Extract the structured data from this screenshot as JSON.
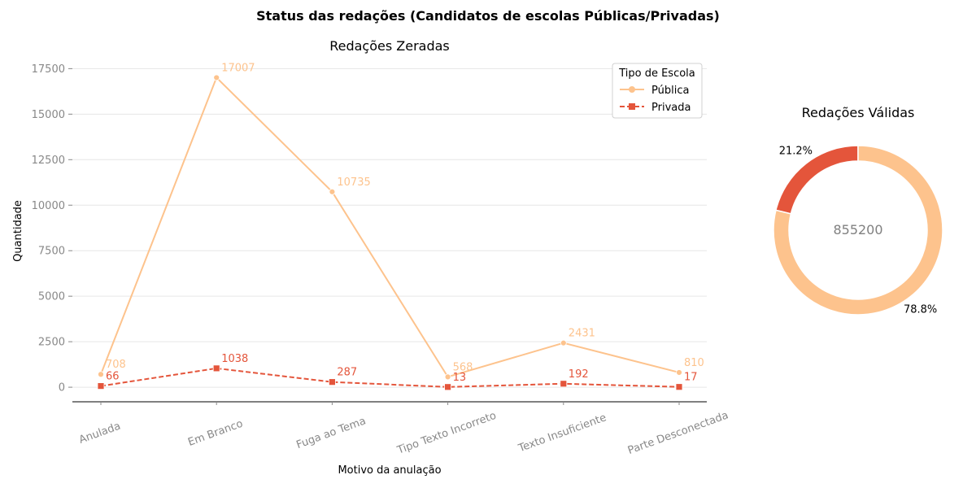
{
  "suptitle": "Status das redações (Candidatos de escolas Públicas/Privadas)",
  "chart_data": [
    {
      "type": "line",
      "title": "Redações Zeradas",
      "xlabel": "Motivo da anulação",
      "ylabel": "Quantidade",
      "categories": [
        "Anulada",
        "Em Branco",
        "Fuga ao Tema",
        "Tipo Texto Incorreto",
        "Texto Insuficiente",
        "Parte Desconectada"
      ],
      "ylim": [
        -800,
        18500
      ],
      "yticks": [
        0,
        2500,
        5000,
        7500,
        10000,
        12500,
        15000,
        17500
      ],
      "grid": "horizontal",
      "legend": {
        "title": "Tipo de Escola",
        "placement": "top-right"
      },
      "series": [
        {
          "name": "Pública",
          "values": [
            708,
            17007,
            10735,
            568,
            2431,
            810
          ],
          "color": "#fdc38d",
          "marker": "circle",
          "line": "solid"
        },
        {
          "name": "Privada",
          "values": [
            66,
            1038,
            287,
            13,
            192,
            17
          ],
          "color": "#e4553b",
          "marker": "square",
          "line": "dashed"
        }
      ]
    },
    {
      "type": "pie",
      "style": "donut",
      "title": "Redações Válidas",
      "center_label": "855200",
      "slices": [
        {
          "label": "21.2%",
          "value": 21.2,
          "color": "#e4553b"
        },
        {
          "label": "78.8%",
          "value": 78.8,
          "color": "#fdc38d"
        }
      ]
    }
  ]
}
